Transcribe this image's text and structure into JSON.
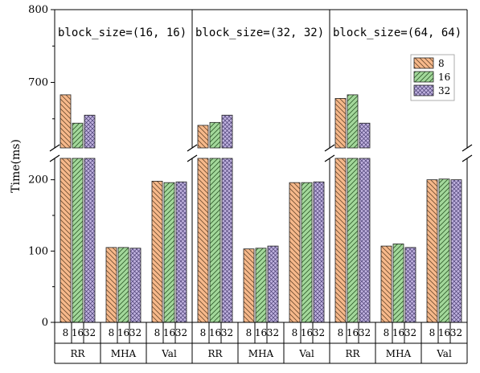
{
  "chart_data": {
    "type": "bar",
    "ylabel": "Time(ms)",
    "y_axis": {
      "broken": true,
      "lower_range": [
        0,
        230
      ],
      "upper_range": [
        610,
        800
      ],
      "lower_ticks": [
        0,
        100,
        200
      ],
      "upper_ticks": [
        700,
        800
      ]
    },
    "panels": [
      {
        "title": "block_size=(16, 16)",
        "groups": [
          {
            "name": "RR",
            "values": [
              683,
              644,
              655
            ]
          },
          {
            "name": "MHA",
            "values": [
              105,
              105,
              104
            ]
          },
          {
            "name": "Val",
            "values": [
              198,
              196,
              197
            ]
          }
        ]
      },
      {
        "title": "block_size=(32, 32)",
        "groups": [
          {
            "name": "RR",
            "values": [
              641,
              645,
              655
            ]
          },
          {
            "name": "MHA",
            "values": [
              103,
              104,
              107
            ]
          },
          {
            "name": "Val",
            "values": [
              196,
              196,
              197
            ]
          }
        ]
      },
      {
        "title": "block_size=(64, 64)",
        "groups": [
          {
            "name": "RR",
            "values": [
              678,
              683,
              644
            ]
          },
          {
            "name": "MHA",
            "values": [
              107,
              110,
              105
            ]
          },
          {
            "name": "Val",
            "values": [
              200,
              201,
              200
            ]
          }
        ]
      }
    ],
    "series": [
      {
        "name": "8",
        "color": "#f7b98b",
        "hatch": "backslash"
      },
      {
        "name": "16",
        "color": "#a3d89b",
        "hatch": "slash"
      },
      {
        "name": "32",
        "color": "#c1b3e0",
        "hatch": "cross"
      }
    ],
    "x_tick_labels": [
      "8",
      "16",
      "32"
    ],
    "legend": {
      "placement": "top-right"
    }
  }
}
